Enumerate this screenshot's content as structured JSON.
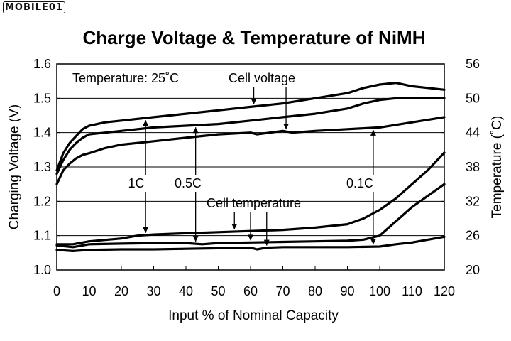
{
  "watermark": "MOBILE01",
  "chart_data": {
    "type": "line",
    "title": "Charge Voltage & Temperature of NiMH",
    "xlabel": "Input % of Nominal Capacity",
    "ylabel": "Charging Voltage (V)",
    "y2label": "Temperature (˚C)",
    "xlim": [
      0,
      120
    ],
    "ylim": [
      1.0,
      1.6
    ],
    "y2lim": [
      20,
      56
    ],
    "xticks": [
      "0",
      "10",
      "20",
      "30",
      "40",
      "50",
      "60",
      "70",
      "80",
      "90",
      "100",
      "110",
      "120"
    ],
    "yticks": [
      "1.0",
      "1.1",
      "1.2",
      "1.3",
      "1.4",
      "1.5",
      "1.6"
    ],
    "y2ticks": [
      "20",
      "26",
      "32",
      "38",
      "44",
      "50",
      "56"
    ],
    "grid": "horizontal",
    "annotations": {
      "temperature_condition": "Temperature: 25˚C",
      "cell_voltage": "Cell voltage",
      "cell_temperature": "Cell temperature",
      "rate_1c": "1C",
      "rate_05c": "0.5C",
      "rate_01c": "0.1C"
    },
    "series": [
      {
        "group": "voltage",
        "rate": "1C",
        "x": [
          0,
          2,
          4,
          6,
          8,
          10,
          15,
          20,
          30,
          40,
          50,
          60,
          70,
          80,
          90,
          95,
          100,
          105,
          110,
          115,
          120
        ],
        "y": [
          1.29,
          1.34,
          1.37,
          1.39,
          1.41,
          1.42,
          1.43,
          1.435,
          1.445,
          1.455,
          1.465,
          1.475,
          1.485,
          1.5,
          1.515,
          1.53,
          1.54,
          1.545,
          1.535,
          1.53,
          1.525
        ]
      },
      {
        "group": "voltage",
        "rate": "0.5C",
        "x": [
          0,
          2,
          4,
          6,
          8,
          10,
          15,
          20,
          30,
          40,
          50,
          60,
          70,
          80,
          90,
          95,
          100,
          105,
          110,
          115,
          120
        ],
        "y": [
          1.28,
          1.32,
          1.35,
          1.37,
          1.385,
          1.395,
          1.4,
          1.405,
          1.415,
          1.42,
          1.425,
          1.435,
          1.445,
          1.455,
          1.47,
          1.485,
          1.495,
          1.5,
          1.5,
          1.5,
          1.5
        ]
      },
      {
        "group": "voltage",
        "rate": "0.1C",
        "x": [
          0,
          2,
          4,
          6,
          8,
          10,
          15,
          20,
          30,
          40,
          50,
          60,
          62,
          70,
          73,
          80,
          90,
          100,
          110,
          120
        ],
        "y": [
          1.25,
          1.29,
          1.31,
          1.325,
          1.335,
          1.34,
          1.355,
          1.365,
          1.375,
          1.385,
          1.395,
          1.4,
          1.395,
          1.405,
          1.4,
          1.405,
          1.41,
          1.415,
          1.43,
          1.445
        ]
      },
      {
        "group": "temperature",
        "rate": "1C",
        "x": [
          0,
          5,
          10,
          20,
          25,
          30,
          40,
          50,
          60,
          70,
          80,
          90,
          95,
          100,
          105,
          110,
          115,
          120
        ],
        "y": [
          24.5,
          24.5,
          25.0,
          25.5,
          26.0,
          26.2,
          26.4,
          26.6,
          26.8,
          27.0,
          27.4,
          28.0,
          29.0,
          30.5,
          32.5,
          35.0,
          37.5,
          40.5
        ]
      },
      {
        "group": "temperature",
        "rate": "0.5C",
        "x": [
          0,
          5,
          10,
          20,
          30,
          40,
          45,
          50,
          60,
          70,
          80,
          90,
          95,
          100,
          105,
          110,
          115,
          120
        ],
        "y": [
          24.3,
          24.0,
          24.5,
          24.6,
          24.7,
          24.7,
          24.5,
          24.7,
          24.8,
          24.9,
          25.0,
          25.1,
          25.3,
          26.0,
          28.5,
          31.0,
          33.0,
          35.0
        ]
      },
      {
        "group": "temperature",
        "rate": "0.1C",
        "x": [
          0,
          5,
          10,
          20,
          30,
          40,
          50,
          60,
          62,
          65,
          70,
          80,
          90,
          100,
          105,
          110,
          120
        ],
        "y": [
          23.5,
          23.3,
          23.5,
          23.6,
          23.6,
          23.7,
          23.8,
          23.9,
          23.6,
          23.9,
          24.0,
          24.0,
          24.0,
          24.1,
          24.5,
          24.8,
          25.8
        ]
      }
    ]
  }
}
